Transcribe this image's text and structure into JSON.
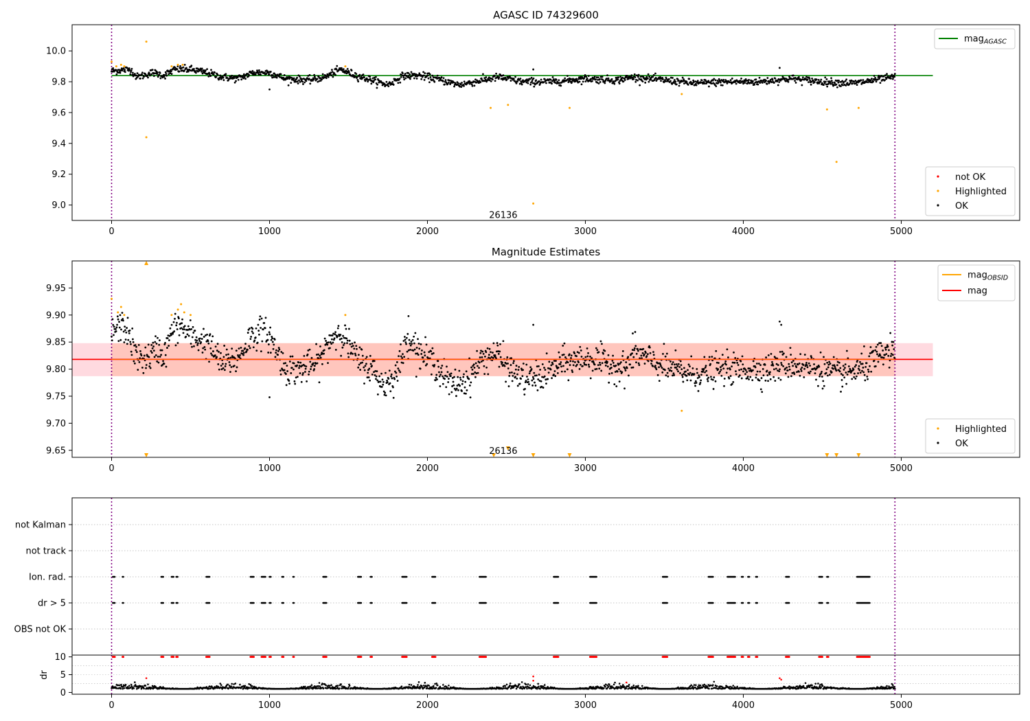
{
  "chart_data": [
    {
      "id": "panel1",
      "type": "scatter",
      "title": "AGASC ID 74329600",
      "xlim": [
        -250,
        5750
      ],
      "ylim": [
        8.9,
        10.17
      ],
      "x_ticks": [
        0,
        1000,
        2000,
        3000,
        4000,
        5000
      ],
      "y_ticks": [
        9.0,
        9.2,
        9.4,
        9.6,
        9.8,
        10.0
      ],
      "y_tick_labels": [
        "9.0",
        "9.2",
        "9.4",
        "9.6",
        "9.8",
        "10.0"
      ],
      "obsid_lines": [
        0,
        4960
      ],
      "annotation": {
        "text": "26136",
        "x": 2480,
        "y": 8.93
      },
      "reference_line": {
        "name": "mag",
        "subscript": "AGASC",
        "y": 9.84,
        "x_range": [
          0,
          5200
        ],
        "color": "#008000"
      },
      "legend_lines": [
        {
          "label": "mag",
          "subscript": "AGASC",
          "color": "#008000"
        }
      ],
      "legend_points": [
        {
          "label": "not OK",
          "color": "#ff0000"
        },
        {
          "label": "Highlighted",
          "color": "#ffa500"
        },
        {
          "label": "OK",
          "color": "#000000"
        }
      ],
      "series": [
        {
          "name": "Highlighted",
          "color": "#ffa500",
          "points": [
            [
              0,
              9.93
            ],
            [
              30,
              9.9
            ],
            [
              60,
              9.91
            ],
            [
              80,
              9.9
            ],
            [
              220,
              10.06
            ],
            [
              220,
              9.44
            ],
            [
              380,
              9.9
            ],
            [
              420,
              9.91
            ],
            [
              450,
              9.91
            ],
            [
              1480,
              9.9
            ],
            [
              2400,
              9.63
            ],
            [
              2510,
              9.65
            ],
            [
              2670,
              9.01
            ],
            [
              2900,
              9.63
            ],
            [
              3610,
              9.72
            ],
            [
              4530,
              9.62
            ],
            [
              4590,
              9.28
            ],
            [
              4730,
              9.63
            ]
          ]
        },
        {
          "name": "OK",
          "color": "#000000",
          "trend": [
            [
              0,
              9.87
            ],
            [
              120,
              9.88
            ],
            [
              160,
              9.83
            ],
            [
              260,
              9.86
            ],
            [
              300,
              9.85
            ],
            [
              330,
              9.84
            ],
            [
              400,
              9.88
            ],
            [
              500,
              9.88
            ],
            [
              600,
              9.86
            ],
            [
              700,
              9.83
            ],
            [
              800,
              9.82
            ],
            [
              900,
              9.86
            ],
            [
              1000,
              9.86
            ],
            [
              1100,
              9.82
            ],
            [
              1250,
              9.81
            ],
            [
              1350,
              9.83
            ],
            [
              1450,
              9.88
            ],
            [
              1550,
              9.84
            ],
            [
              1650,
              9.81
            ],
            [
              1750,
              9.78
            ],
            [
              1850,
              9.84
            ],
            [
              1950,
              9.84
            ],
            [
              2050,
              9.82
            ],
            [
              2200,
              9.78
            ],
            [
              2350,
              9.81
            ],
            [
              2450,
              9.83
            ],
            [
              2600,
              9.8
            ],
            [
              2800,
              9.8
            ],
            [
              3000,
              9.82
            ],
            [
              3200,
              9.81
            ],
            [
              3300,
              9.83
            ],
            [
              3500,
              9.81
            ],
            [
              3700,
              9.79
            ],
            [
              3900,
              9.8
            ],
            [
              4100,
              9.8
            ],
            [
              4300,
              9.82
            ],
            [
              4500,
              9.8
            ],
            [
              4700,
              9.79
            ],
            [
              4960,
              9.83
            ]
          ],
          "noise": 0.012,
          "extra_points": [
            [
              1000,
              9.75
            ],
            [
              2670,
              9.88
            ],
            [
              4230,
              9.89
            ]
          ]
        }
      ]
    },
    {
      "id": "panel2",
      "type": "scatter",
      "title": "Magnitude Estimates",
      "xlim": [
        -250,
        5750
      ],
      "ylim": [
        9.637,
        10.0
      ],
      "x_ticks": [
        0,
        1000,
        2000,
        3000,
        4000,
        5000
      ],
      "y_ticks": [
        9.65,
        9.7,
        9.75,
        9.8,
        9.85,
        9.9,
        9.95
      ],
      "y_tick_labels": [
        "9.65",
        "9.70",
        "9.75",
        "9.80",
        "9.85",
        "9.90",
        "9.95"
      ],
      "obsid_lines": [
        0,
        4960
      ],
      "annotation": {
        "text": "26136",
        "x": 2480,
        "y": 9.647
      },
      "band": {
        "ylow": 9.787,
        "yhigh": 9.848,
        "x_range": [
          -250,
          5200
        ],
        "color": "#ffb6c1"
      },
      "obsid_band": {
        "ylow": 9.787,
        "yhigh": 9.848,
        "x_range": [
          0,
          4960
        ],
        "color": "#ffa07a"
      },
      "mag_line": {
        "y": 9.818,
        "x_range": [
          -250,
          5200
        ],
        "color": "#ff0000"
      },
      "obsid_mag_line": {
        "y": 9.818,
        "x_range": [
          0,
          4960
        ],
        "color": "#ffa500"
      },
      "legend_lines": [
        {
          "label": "mag",
          "subscript": "OBSID",
          "color": "#ffa500"
        },
        {
          "label": "mag",
          "subscript": "",
          "color": "#ff0000"
        }
      ],
      "legend_points": [
        {
          "label": "Highlighted",
          "color": "#ffa500"
        },
        {
          "label": "OK",
          "color": "#000000"
        }
      ],
      "series": [
        {
          "name": "Highlighted",
          "color": "#ffa500",
          "points": [
            [
              0,
              9.93
            ],
            [
              40,
              9.905
            ],
            [
              60,
              9.915
            ],
            [
              80,
              9.9
            ],
            [
              380,
              9.9
            ],
            [
              420,
              9.91
            ],
            [
              440,
              9.92
            ],
            [
              460,
              9.905
            ],
            [
              500,
              9.9
            ],
            [
              1480,
              9.9
            ],
            [
              3610,
              9.723
            ]
          ],
          "upper_markers": [
            220
          ],
          "lower_markers": [
            220,
            2420,
            2670,
            2900,
            4530,
            4590,
            4730
          ],
          "mid_markers": [
            2510
          ]
        },
        {
          "name": "OK",
          "color": "#000000",
          "trend": [
            [
              0,
              9.87
            ],
            [
              60,
              9.88
            ],
            [
              100,
              9.87
            ],
            [
              160,
              9.82
            ],
            [
              230,
              9.82
            ],
            [
              300,
              9.84
            ],
            [
              330,
              9.82
            ],
            [
              380,
              9.87
            ],
            [
              440,
              9.88
            ],
            [
              500,
              9.86
            ],
            [
              600,
              9.85
            ],
            [
              700,
              9.81
            ],
            [
              800,
              9.82
            ],
            [
              880,
              9.86
            ],
            [
              950,
              9.87
            ],
            [
              1000,
              9.86
            ],
            [
              1100,
              9.8
            ],
            [
              1200,
              9.8
            ],
            [
              1300,
              9.81
            ],
            [
              1400,
              9.86
            ],
            [
              1450,
              9.87
            ],
            [
              1550,
              9.82
            ],
            [
              1650,
              9.8
            ],
            [
              1720,
              9.77
            ],
            [
              1800,
              9.79
            ],
            [
              1880,
              9.86
            ],
            [
              1950,
              9.83
            ],
            [
              2050,
              9.81
            ],
            [
              2150,
              9.77
            ],
            [
              2250,
              9.78
            ],
            [
              2350,
              9.82
            ],
            [
              2430,
              9.83
            ],
            [
              2520,
              9.8
            ],
            [
              2620,
              9.78
            ],
            [
              2750,
              9.79
            ],
            [
              2850,
              9.81
            ],
            [
              3000,
              9.82
            ],
            [
              3150,
              9.81
            ],
            [
              3250,
              9.8
            ],
            [
              3320,
              9.83
            ],
            [
              3450,
              9.81
            ],
            [
              3550,
              9.8
            ],
            [
              3700,
              9.79
            ],
            [
              3850,
              9.8
            ],
            [
              4000,
              9.8
            ],
            [
              4150,
              9.8
            ],
            [
              4300,
              9.81
            ],
            [
              4500,
              9.8
            ],
            [
              4600,
              9.79
            ],
            [
              4750,
              9.8
            ],
            [
              4900,
              9.83
            ],
            [
              4960,
              9.83
            ]
          ],
          "noise": 0.014,
          "extra_points": [
            [
              1000,
              9.748
            ],
            [
              2670,
              9.882
            ],
            [
              4230,
              9.888
            ],
            [
              4240,
              9.882
            ],
            [
              1880,
              9.898
            ],
            [
              3300,
              9.866
            ]
          ]
        }
      ]
    },
    {
      "id": "panel3",
      "type": "scatter",
      "xlim": [
        -250,
        5750
      ],
      "categories": [
        "not Kalman",
        "not track",
        "Ion. rad.",
        "dr > 5",
        "OBS not OK"
      ],
      "obsid_lines": [
        0,
        4960
      ],
      "event_clusters": [
        [
          8,
          22
        ],
        [
          70,
          75
        ],
        [
          315,
          330
        ],
        [
          380,
          395
        ],
        [
          410,
          418
        ],
        [
          600,
          620
        ],
        [
          880,
          900
        ],
        [
          950,
          975
        ],
        [
          1000,
          1010
        ],
        [
          1080,
          1090
        ],
        [
          1150,
          1155
        ],
        [
          1340,
          1360
        ],
        [
          1560,
          1580
        ],
        [
          1640,
          1650
        ],
        [
          1840,
          1870
        ],
        [
          2030,
          2050
        ],
        [
          2330,
          2370
        ],
        [
          2800,
          2830
        ],
        [
          3030,
          3070
        ],
        [
          3490,
          3520
        ],
        [
          3780,
          3810
        ],
        [
          3900,
          3950
        ],
        [
          3990,
          4000
        ],
        [
          4030,
          4040
        ],
        [
          4080,
          4090
        ],
        [
          4270,
          4290
        ],
        [
          4480,
          4500
        ],
        [
          4530,
          4540
        ],
        [
          4720,
          4800
        ]
      ],
      "event_rows": [
        "Ion. rad.",
        "dr > 5"
      ]
    },
    {
      "id": "panel4",
      "type": "scatter",
      "xlim": [
        -250,
        5750
      ],
      "ylim": [
        -0.5,
        10.5
      ],
      "x_ticks": [
        0,
        1000,
        2000,
        3000,
        4000,
        5000
      ],
      "y_ticks": [
        0,
        5,
        10
      ],
      "y_tick_labels": [
        "0",
        "5",
        "10"
      ],
      "ylabel": "dr",
      "obsid_lines": [
        0,
        4960
      ],
      "series": [
        {
          "name": "OK",
          "color": "#000000",
          "base": 1.0,
          "noise": 0.6,
          "extra_points": [
            [
              220,
              4.0
            ],
            [
              2670,
              3.3
            ],
            [
              2670,
              4.5
            ],
            [
              4230,
              4.0
            ],
            [
              4240,
              3.6
            ],
            [
              3260,
              2.8
            ]
          ]
        },
        {
          "name": "not OK",
          "color": "#ff0000",
          "y": 10.0
        }
      ]
    }
  ]
}
